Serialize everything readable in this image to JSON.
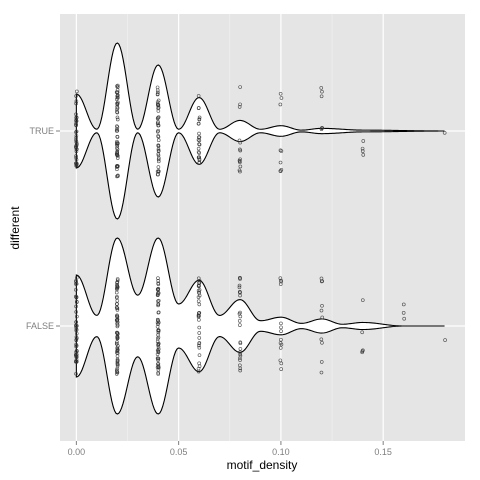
{
  "chart_data": {
    "type": "violin",
    "xlabel": "motif_density",
    "ylabel": "different",
    "xlim": [
      -0.008,
      0.19
    ],
    "x_ticks": [
      0.0,
      0.05,
      0.1,
      0.15
    ],
    "x_tick_labels": [
      "0.00",
      "0.05",
      "0.10",
      "0.15"
    ],
    "categories": [
      "TRUE",
      "FALSE"
    ],
    "grid": true,
    "background": "#e5e5e5",
    "grid_color": "#ffffff",
    "violin_fill": "#ffffff",
    "violin_stroke": "#000000",
    "point_color": "#333333",
    "series": [
      {
        "category": "TRUE",
        "density_max_x": 0.18,
        "density_profile": [
          {
            "x": 0.0,
            "w": 0.42
          },
          {
            "x": 0.01,
            "w": 0.02
          },
          {
            "x": 0.02,
            "w": 1.0
          },
          {
            "x": 0.03,
            "w": 0.02
          },
          {
            "x": 0.04,
            "w": 0.75
          },
          {
            "x": 0.05,
            "w": 0.02
          },
          {
            "x": 0.06,
            "w": 0.38
          },
          {
            "x": 0.07,
            "w": 0.02
          },
          {
            "x": 0.08,
            "w": 0.12
          },
          {
            "x": 0.09,
            "w": 0.02
          },
          {
            "x": 0.1,
            "w": 0.06
          },
          {
            "x": 0.11,
            "w": 0.01
          },
          {
            "x": 0.12,
            "w": 0.03
          },
          {
            "x": 0.14,
            "w": 0.01
          },
          {
            "x": 0.18,
            "w": 0.0
          }
        ],
        "points": [
          {
            "x": 0.0,
            "n": 40,
            "spread": 0.45
          },
          {
            "x": 0.02,
            "n": 60,
            "spread": 0.52
          },
          {
            "x": 0.04,
            "n": 45,
            "spread": 0.5
          },
          {
            "x": 0.06,
            "n": 25,
            "spread": 0.4
          },
          {
            "x": 0.08,
            "n": 14,
            "spread": 0.55
          },
          {
            "x": 0.1,
            "n": 9,
            "spread": 0.5
          },
          {
            "x": 0.12,
            "n": 6,
            "spread": 0.55
          },
          {
            "x": 0.14,
            "n": 4,
            "spread": 0.5
          },
          {
            "x": 0.18,
            "n": 1,
            "spread": 0.05
          }
        ]
      },
      {
        "category": "FALSE",
        "density_max_x": 0.18,
        "density_profile": [
          {
            "x": 0.0,
            "w": 0.58
          },
          {
            "x": 0.01,
            "w": 0.12
          },
          {
            "x": 0.02,
            "w": 1.0
          },
          {
            "x": 0.03,
            "w": 0.35
          },
          {
            "x": 0.04,
            "w": 1.0
          },
          {
            "x": 0.05,
            "w": 0.25
          },
          {
            "x": 0.06,
            "w": 0.52
          },
          {
            "x": 0.07,
            "w": 0.12
          },
          {
            "x": 0.08,
            "w": 0.3
          },
          {
            "x": 0.09,
            "w": 0.06
          },
          {
            "x": 0.1,
            "w": 0.1
          },
          {
            "x": 0.11,
            "w": 0.03
          },
          {
            "x": 0.12,
            "w": 0.08
          },
          {
            "x": 0.13,
            "w": 0.02
          },
          {
            "x": 0.14,
            "w": 0.04
          },
          {
            "x": 0.16,
            "w": 0.0
          },
          {
            "x": 0.18,
            "w": 0.0
          }
        ],
        "points": [
          {
            "x": 0.0,
            "n": 45,
            "spread": 0.55
          },
          {
            "x": 0.02,
            "n": 70,
            "spread": 0.55
          },
          {
            "x": 0.04,
            "n": 60,
            "spread": 0.55
          },
          {
            "x": 0.06,
            "n": 35,
            "spread": 0.55
          },
          {
            "x": 0.08,
            "n": 25,
            "spread": 0.55
          },
          {
            "x": 0.1,
            "n": 14,
            "spread": 0.55
          },
          {
            "x": 0.12,
            "n": 10,
            "spread": 0.55
          },
          {
            "x": 0.14,
            "n": 5,
            "spread": 0.35
          },
          {
            "x": 0.16,
            "n": 3,
            "spread": 0.5
          },
          {
            "x": 0.18,
            "n": 1,
            "spread": 0.25
          }
        ]
      }
    ]
  }
}
